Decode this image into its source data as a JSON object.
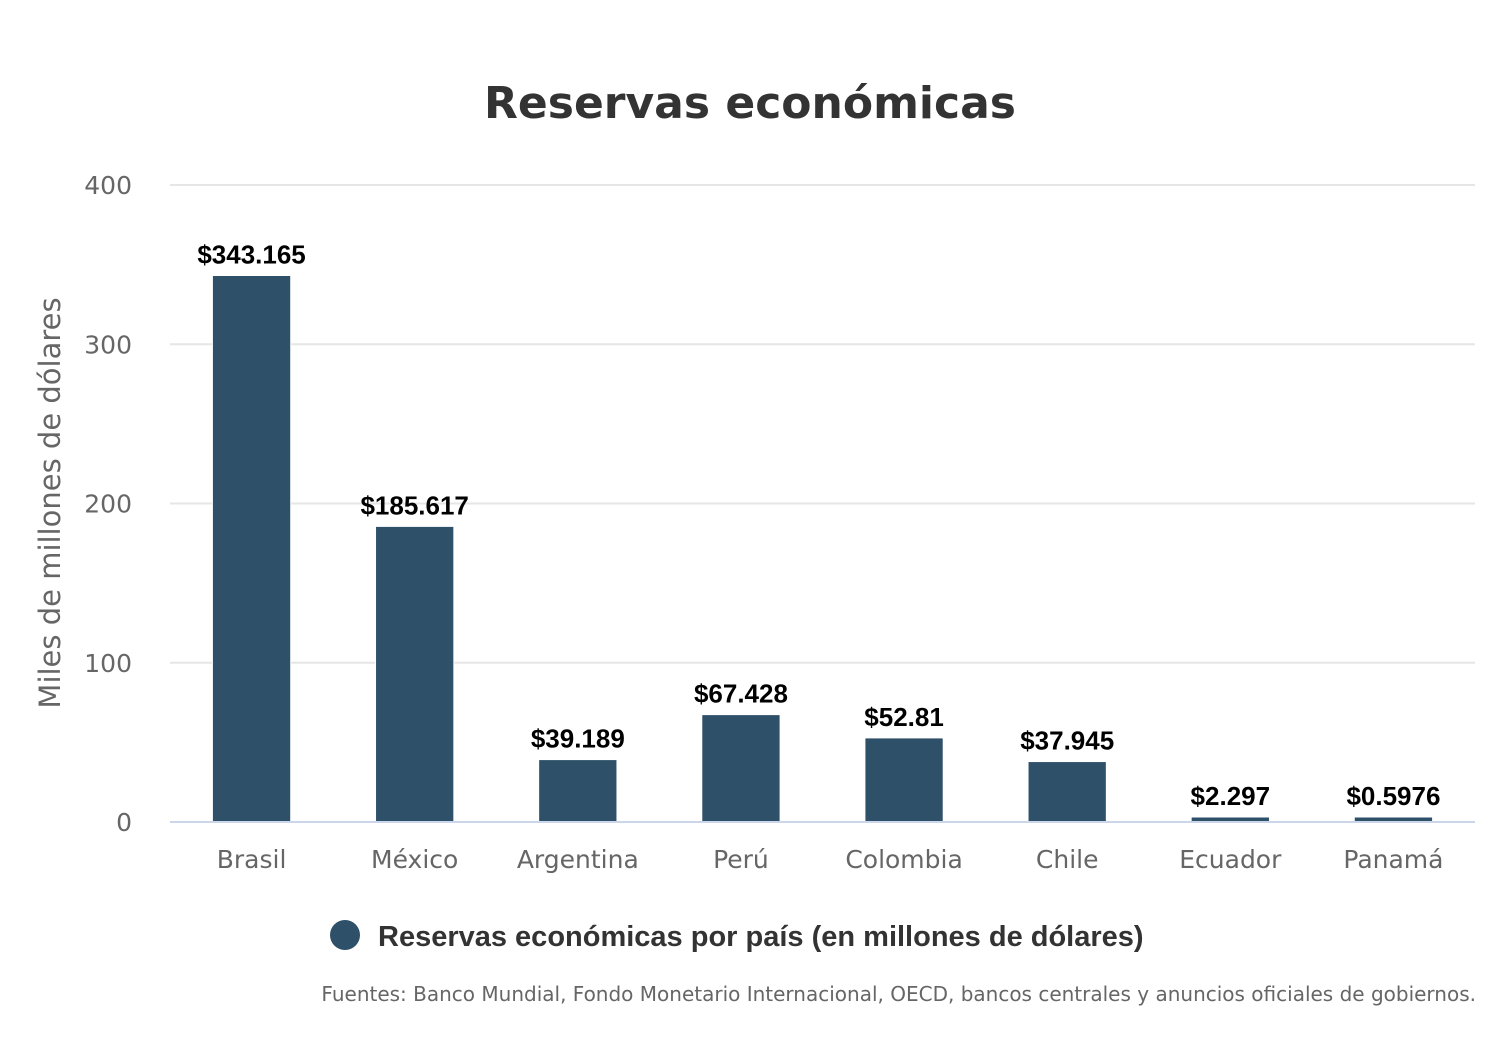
{
  "chart_data": {
    "type": "bar",
    "title": "Reservas económicas",
    "ylabel": "Miles de millones de dólares",
    "xlabel": "",
    "ylim": [
      0,
      400
    ],
    "yticks": [
      0,
      100,
      200,
      300,
      400
    ],
    "grid": true,
    "legend_position": "bottom-center",
    "categories": [
      "Brasil",
      "México",
      "Argentina",
      "Perú",
      "Colombia",
      "Chile",
      "Ecuador",
      "Panamá"
    ],
    "series": [
      {
        "name": "Reservas económicas por país (en millones de dólares)",
        "color": "#2e5069",
        "values": [
          343.165,
          185.617,
          39.189,
          67.428,
          52.81,
          37.945,
          2.297,
          0.5976
        ],
        "labels": [
          "$343.165",
          "$185.617",
          "$39.189",
          "$67.428",
          "$52.81",
          "$37.945",
          "$2.297",
          "$0.5976"
        ]
      }
    ],
    "credits": "Fuentes: Banco Mundial, Fondo Monetario Internacional, OECD, bancos centrales y anuncios oficiales de gobiernos."
  }
}
